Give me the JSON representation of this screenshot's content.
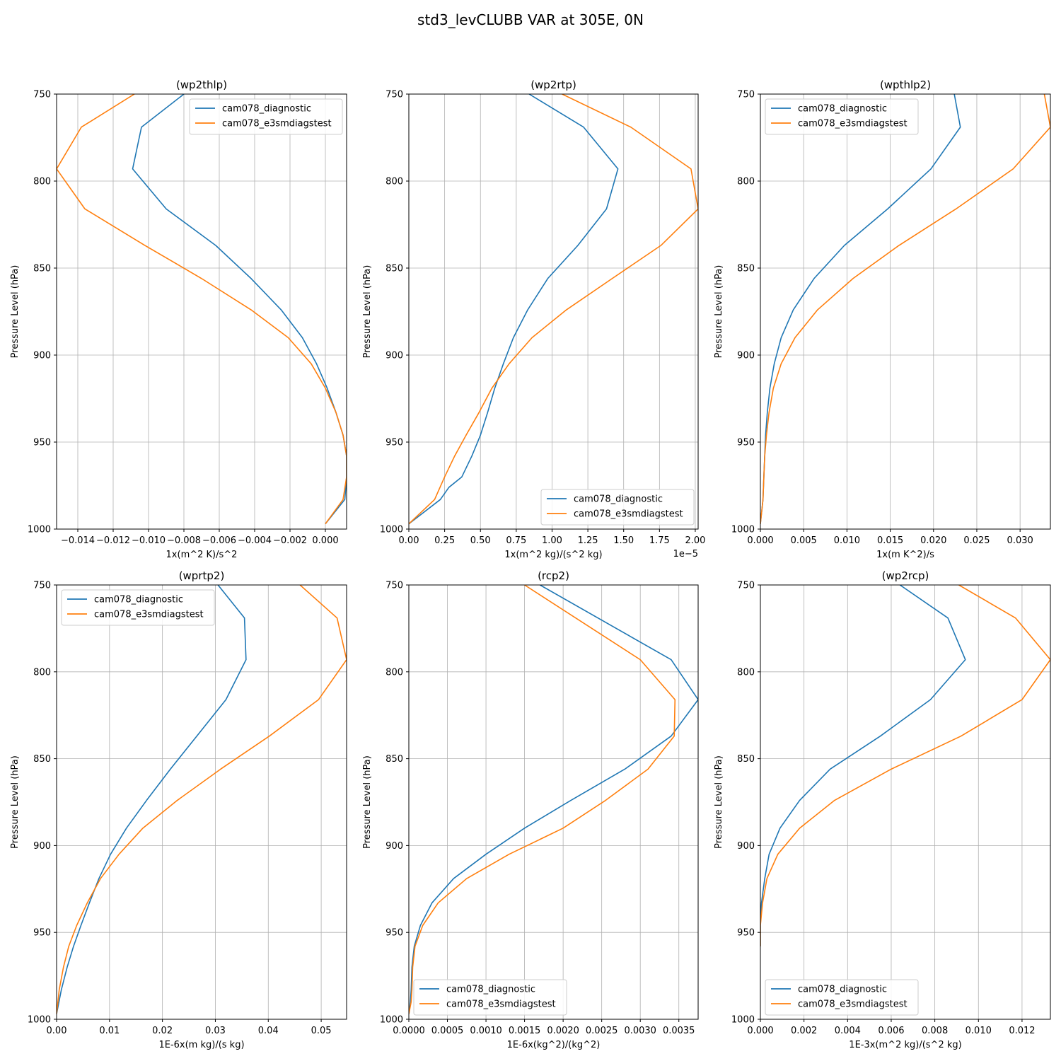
{
  "suptitle": "std3_levCLUBB VAR at 305E, 0N",
  "colors": {
    "series1": "#1f77b4",
    "series2": "#ff7f0e",
    "grid": "#b0b0b0",
    "legend_border": "#cccccc"
  },
  "chart_data": [
    {
      "type": "line",
      "title": "(wp2thlp)",
      "xlabel": "1x(m^2 K)/s^2",
      "ylabel": "Pressure Level (hPa)",
      "xlim": [
        -0.0152,
        0.0012
      ],
      "ylim": [
        1000,
        750
      ],
      "grid": true,
      "legend": "upper-right",
      "xticks": [
        -0.014,
        -0.012,
        -0.01,
        -0.008,
        -0.006,
        -0.004,
        -0.002,
        0.0
      ],
      "xticklabels": [
        "−0.014",
        "−0.012",
        "−0.010",
        "−0.008",
        "−0.006",
        "−0.004",
        "−0.002",
        "0.000"
      ],
      "yticks": [
        750,
        800,
        850,
        900,
        950,
        1000
      ],
      "yticklabels": [
        "750",
        "800",
        "850",
        "900",
        "950",
        "1000"
      ],
      "offset_label": "",
      "series": [
        {
          "name": "cam078_diagnostic",
          "color": "#1f77b4",
          "x": [
            -0.008,
            -0.0104,
            -0.0109,
            -0.009,
            -0.0062,
            -0.0042,
            -0.0025,
            -0.0013,
            -0.0005,
            0.0001,
            0.0006,
            0.001,
            0.0012,
            0.0012,
            0.0011,
            0.0
          ],
          "p": [
            750,
            769,
            793,
            816,
            837,
            856,
            874,
            890,
            905,
            919,
            933,
            946,
            958,
            970,
            983,
            997
          ]
        },
        {
          "name": "cam078_e3smdiagstest",
          "color": "#ff7f0e",
          "x": [
            -0.0108,
            -0.0138,
            -0.0152,
            -0.0136,
            -0.0102,
            -0.007,
            -0.0042,
            -0.0021,
            -0.0008,
            0.0,
            0.0006,
            0.001,
            0.0012,
            0.0012,
            0.001,
            0.0
          ],
          "p": [
            750,
            769,
            793,
            816,
            837,
            856,
            874,
            890,
            905,
            919,
            933,
            946,
            958,
            970,
            983,
            997
          ]
        }
      ]
    },
    {
      "type": "line",
      "title": "(wp2rtp)",
      "xlabel": "1x(m^2 kg)/(s^2 kg)",
      "ylabel": "Pressure Level (hPa)",
      "xlim": [
        0,
        2.02e-05
      ],
      "ylim": [
        1000,
        750
      ],
      "grid": true,
      "legend": "lower-right",
      "xticks": [
        0,
        2.5e-06,
        5e-06,
        7.5e-06,
        1e-05,
        1.25e-05,
        1.5e-05,
        1.75e-05,
        2e-05
      ],
      "xticklabels": [
        "0.00",
        "0.25",
        "0.50",
        "0.75",
        "1.00",
        "1.25",
        "1.50",
        "1.75",
        "2.00"
      ],
      "yticks": [
        750,
        800,
        850,
        900,
        950,
        1000
      ],
      "yticklabels": [
        "750",
        "800",
        "850",
        "900",
        "950",
        "1000"
      ],
      "offset_label": "1e−5",
      "series": [
        {
          "name": "cam078_diagnostic",
          "color": "#1f77b4",
          "x": [
            8.4e-06,
            1.22e-05,
            1.46e-05,
            1.38e-05,
            1.18e-05,
            9.7e-06,
            8.3e-06,
            7.3e-06,
            6.6e-06,
            6e-06,
            5.5e-06,
            5e-06,
            4.4e-06,
            3.7e-06,
            2.8e-06,
            2.2e-06,
            0
          ],
          "p": [
            750,
            769,
            793,
            816,
            837,
            856,
            874,
            890,
            905,
            919,
            933,
            946,
            958,
            970,
            976,
            983,
            997
          ]
        },
        {
          "name": "cam078_e3smdiagstest",
          "color": "#ff7f0e",
          "x": [
            1.07e-05,
            1.55e-05,
            1.97e-05,
            2.02e-05,
            1.76e-05,
            1.42e-05,
            1.1e-05,
            8.6e-06,
            7e-06,
            5.8e-06,
            4.9e-06,
            4e-06,
            3.2e-06,
            2.5e-06,
            1.8e-06,
            0
          ],
          "p": [
            750,
            769,
            793,
            816,
            837,
            856,
            874,
            890,
            905,
            919,
            933,
            946,
            958,
            970,
            983,
            997
          ]
        }
      ]
    },
    {
      "type": "line",
      "title": "(wpthlp2)",
      "xlabel": "1x(m K^2)/s",
      "ylabel": "Pressure Level (hPa)",
      "xlim": [
        0,
        0.0335
      ],
      "ylim": [
        1000,
        750
      ],
      "grid": true,
      "legend": "upper-left",
      "xticks": [
        0,
        0.005,
        0.01,
        0.015,
        0.02,
        0.025,
        0.03
      ],
      "xticklabels": [
        "0.000",
        "0.005",
        "0.010",
        "0.015",
        "0.020",
        "0.025",
        "0.030"
      ],
      "yticks": [
        750,
        800,
        850,
        900,
        950,
        1000
      ],
      "yticklabels": [
        "750",
        "800",
        "850",
        "900",
        "950",
        "1000"
      ],
      "offset_label": "",
      "series": [
        {
          "name": "cam078_diagnostic",
          "color": "#1f77b4",
          "x": [
            0.0224,
            0.0231,
            0.0197,
            0.0147,
            0.0097,
            0.0062,
            0.0038,
            0.0024,
            0.0016,
            0.0011,
            0.0008,
            0.0006,
            0.0005,
            0.0004,
            0.0003,
            0.0
          ],
          "p": [
            750,
            769,
            793,
            816,
            837,
            856,
            874,
            890,
            905,
            919,
            933,
            946,
            958,
            970,
            983,
            997
          ]
        },
        {
          "name": "cam078_e3smdiagstest",
          "color": "#ff7f0e",
          "x": [
            0.0328,
            0.0335,
            0.0292,
            0.0226,
            0.016,
            0.0107,
            0.0066,
            0.004,
            0.0024,
            0.0015,
            0.001,
            0.0007,
            0.0005,
            0.0004,
            0.0003,
            0.0
          ],
          "p": [
            750,
            769,
            793,
            816,
            837,
            856,
            874,
            890,
            905,
            919,
            933,
            946,
            958,
            970,
            983,
            997
          ]
        }
      ]
    },
    {
      "type": "line",
      "title": "(wprtp2)",
      "xlabel": "1E-6x(m kg)/(s kg)",
      "ylabel": "Pressure Level (hPa)",
      "xlim": [
        0,
        0.0548
      ],
      "ylim": [
        1000,
        750
      ],
      "grid": true,
      "legend": "upper-left",
      "xticks": [
        0,
        0.01,
        0.02,
        0.03,
        0.04,
        0.05
      ],
      "xticklabels": [
        "0.00",
        "0.01",
        "0.02",
        "0.03",
        "0.04",
        "0.05"
      ],
      "yticks": [
        750,
        800,
        850,
        900,
        950,
        1000
      ],
      "yticklabels": [
        "750",
        "800",
        "850",
        "900",
        "950",
        "1000"
      ],
      "offset_label": "",
      "series": [
        {
          "name": "cam078_diagnostic",
          "color": "#1f77b4",
          "x": [
            0.0305,
            0.0355,
            0.0358,
            0.032,
            0.0265,
            0.0215,
            0.017,
            0.0132,
            0.0102,
            0.008,
            0.0062,
            0.0046,
            0.0032,
            0.002,
            0.0009,
            0.0
          ],
          "p": [
            750,
            769,
            793,
            816,
            837,
            856,
            874,
            890,
            905,
            919,
            933,
            946,
            958,
            970,
            983,
            997
          ]
        },
        {
          "name": "cam078_e3smdiagstest",
          "color": "#ff7f0e",
          "x": [
            0.046,
            0.053,
            0.0548,
            0.0495,
            0.0402,
            0.031,
            0.0228,
            0.0163,
            0.0118,
            0.0083,
            0.0058,
            0.0038,
            0.0023,
            0.0013,
            0.0005,
            0.0
          ],
          "p": [
            750,
            769,
            793,
            816,
            837,
            856,
            874,
            890,
            905,
            919,
            933,
            946,
            958,
            970,
            983,
            997
          ]
        }
      ]
    },
    {
      "type": "line",
      "title": "(rcp2)",
      "xlabel": "1E-6x(kg^2)/(kg^2)",
      "ylabel": "Pressure Level (hPa)",
      "xlim": [
        0,
        0.00375
      ],
      "ylim": [
        1000,
        750
      ],
      "grid": true,
      "legend": "lower-left",
      "xticks": [
        0,
        0.0005,
        0.001,
        0.0015,
        0.002,
        0.0025,
        0.003,
        0.0035
      ],
      "xticklabels": [
        "0.0000",
        "0.0005",
        "0.0010",
        "0.0015",
        "0.0020",
        "0.0025",
        "0.0030",
        "0.0035"
      ],
      "yticks": [
        750,
        800,
        850,
        900,
        950,
        1000
      ],
      "yticklabels": [
        "750",
        "800",
        "850",
        "900",
        "950",
        "1000"
      ],
      "offset_label": "",
      "series": [
        {
          "name": "cam078_diagnostic",
          "color": "#1f77b4",
          "x": [
            0.0017,
            0.0034,
            0.00375,
            0.0034,
            0.0028,
            0.0021,
            0.0015,
            0.001,
            0.00058,
            0.0003,
            0.00015,
            7e-05,
            4e-05,
            3e-05,
            2e-05,
            0.0
          ],
          "p": [
            750,
            793,
            816,
            837,
            856,
            874,
            890,
            905,
            919,
            933,
            946,
            958,
            970,
            983,
            990,
            997
          ]
        },
        {
          "name": "cam078_e3smdiagstest",
          "color": "#ff7f0e",
          "x": [
            0.0015,
            0.003,
            0.00345,
            0.00344,
            0.0031,
            0.00255,
            0.002,
            0.0013,
            0.00075,
            0.00038,
            0.00018,
            8e-05,
            5e-05,
            4e-05,
            3e-05,
            0.0
          ],
          "p": [
            750,
            793,
            816,
            837,
            856,
            874,
            890,
            905,
            919,
            933,
            946,
            958,
            970,
            983,
            990,
            997
          ]
        }
      ]
    },
    {
      "type": "line",
      "title": "(wp2rcp)",
      "xlabel": "1E-3x(m^2 kg)/(s^2 kg)",
      "ylabel": "Pressure Level (hPa)",
      "xlim": [
        0,
        0.0133
      ],
      "ylim": [
        1000,
        750
      ],
      "grid": true,
      "legend": "lower-left",
      "xticks": [
        0,
        0.002,
        0.004,
        0.006,
        0.008,
        0.01,
        0.012
      ],
      "xticklabels": [
        "0.000",
        "0.002",
        "0.004",
        "0.006",
        "0.008",
        "0.010",
        "0.012"
      ],
      "yticks": [
        750,
        800,
        850,
        900,
        950,
        1000
      ],
      "yticklabels": [
        "750",
        "800",
        "850",
        "900",
        "950",
        "1000"
      ],
      "offset_label": "",
      "series": [
        {
          "name": "cam078_diagnostic",
          "color": "#1f77b4",
          "x": [
            0.0064,
            0.0086,
            0.0094,
            0.0078,
            0.0055,
            0.0032,
            0.0018,
            0.0009,
            0.0004,
            0.0002,
            5e-05,
            0.0,
            0.0
          ],
          "p": [
            750,
            769,
            793,
            816,
            837,
            856,
            874,
            890,
            905,
            919,
            933,
            946,
            958
          ]
        },
        {
          "name": "cam078_e3smdiagstest",
          "color": "#ff7f0e",
          "x": [
            0.0091,
            0.0117,
            0.0133,
            0.012,
            0.0092,
            0.006,
            0.0034,
            0.0018,
            0.0008,
            0.0003,
            0.0001,
            0.0,
            0.0
          ],
          "p": [
            750,
            769,
            793,
            816,
            837,
            856,
            874,
            890,
            905,
            919,
            933,
            946,
            958
          ]
        }
      ]
    }
  ]
}
